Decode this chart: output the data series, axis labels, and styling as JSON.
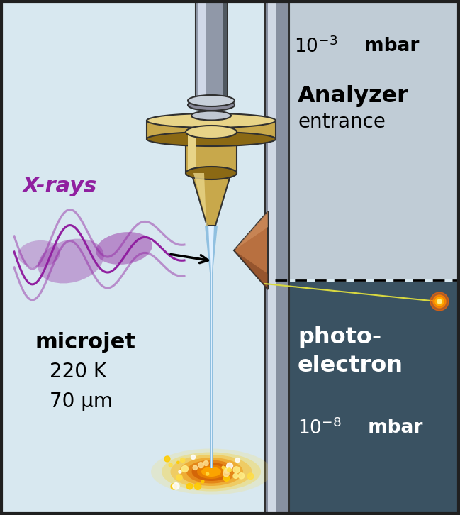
{
  "bg_color": "#d8e8f0",
  "analyzer_upper_bg": "#c0ccd6",
  "analyzer_lower_bg": "#3a5262",
  "wall_color": "#8890a0",
  "wall_highlight": "#d0d8e4",
  "nozzle_gold": "#c8a84b",
  "nozzle_gold_light": "#e8d488",
  "nozzle_gold_dark": "#8b6914",
  "tube_color": "#9098a8",
  "tube_highlight": "#d0d8e8",
  "tube_dark": "#505860",
  "jet_color": "#a0c8e8",
  "jet_highlight": "#e0f0ff",
  "xray_color": "#9020a0",
  "cone_color": "#b87040",
  "cone_dark": "#7a4020",
  "cone_light": "#d09060",
  "arrow_color": "#000000",
  "pe_line_color": "#d8d840",
  "border_color": "#202020",
  "label_xrays": "X-rays",
  "label_microjet": "microjet",
  "label_temp": "220 K",
  "label_diam": "70 μm",
  "label_analyzer": "Analyzer",
  "label_entrance": "entrance",
  "label_photo": "photo-",
  "label_electron": "electron"
}
